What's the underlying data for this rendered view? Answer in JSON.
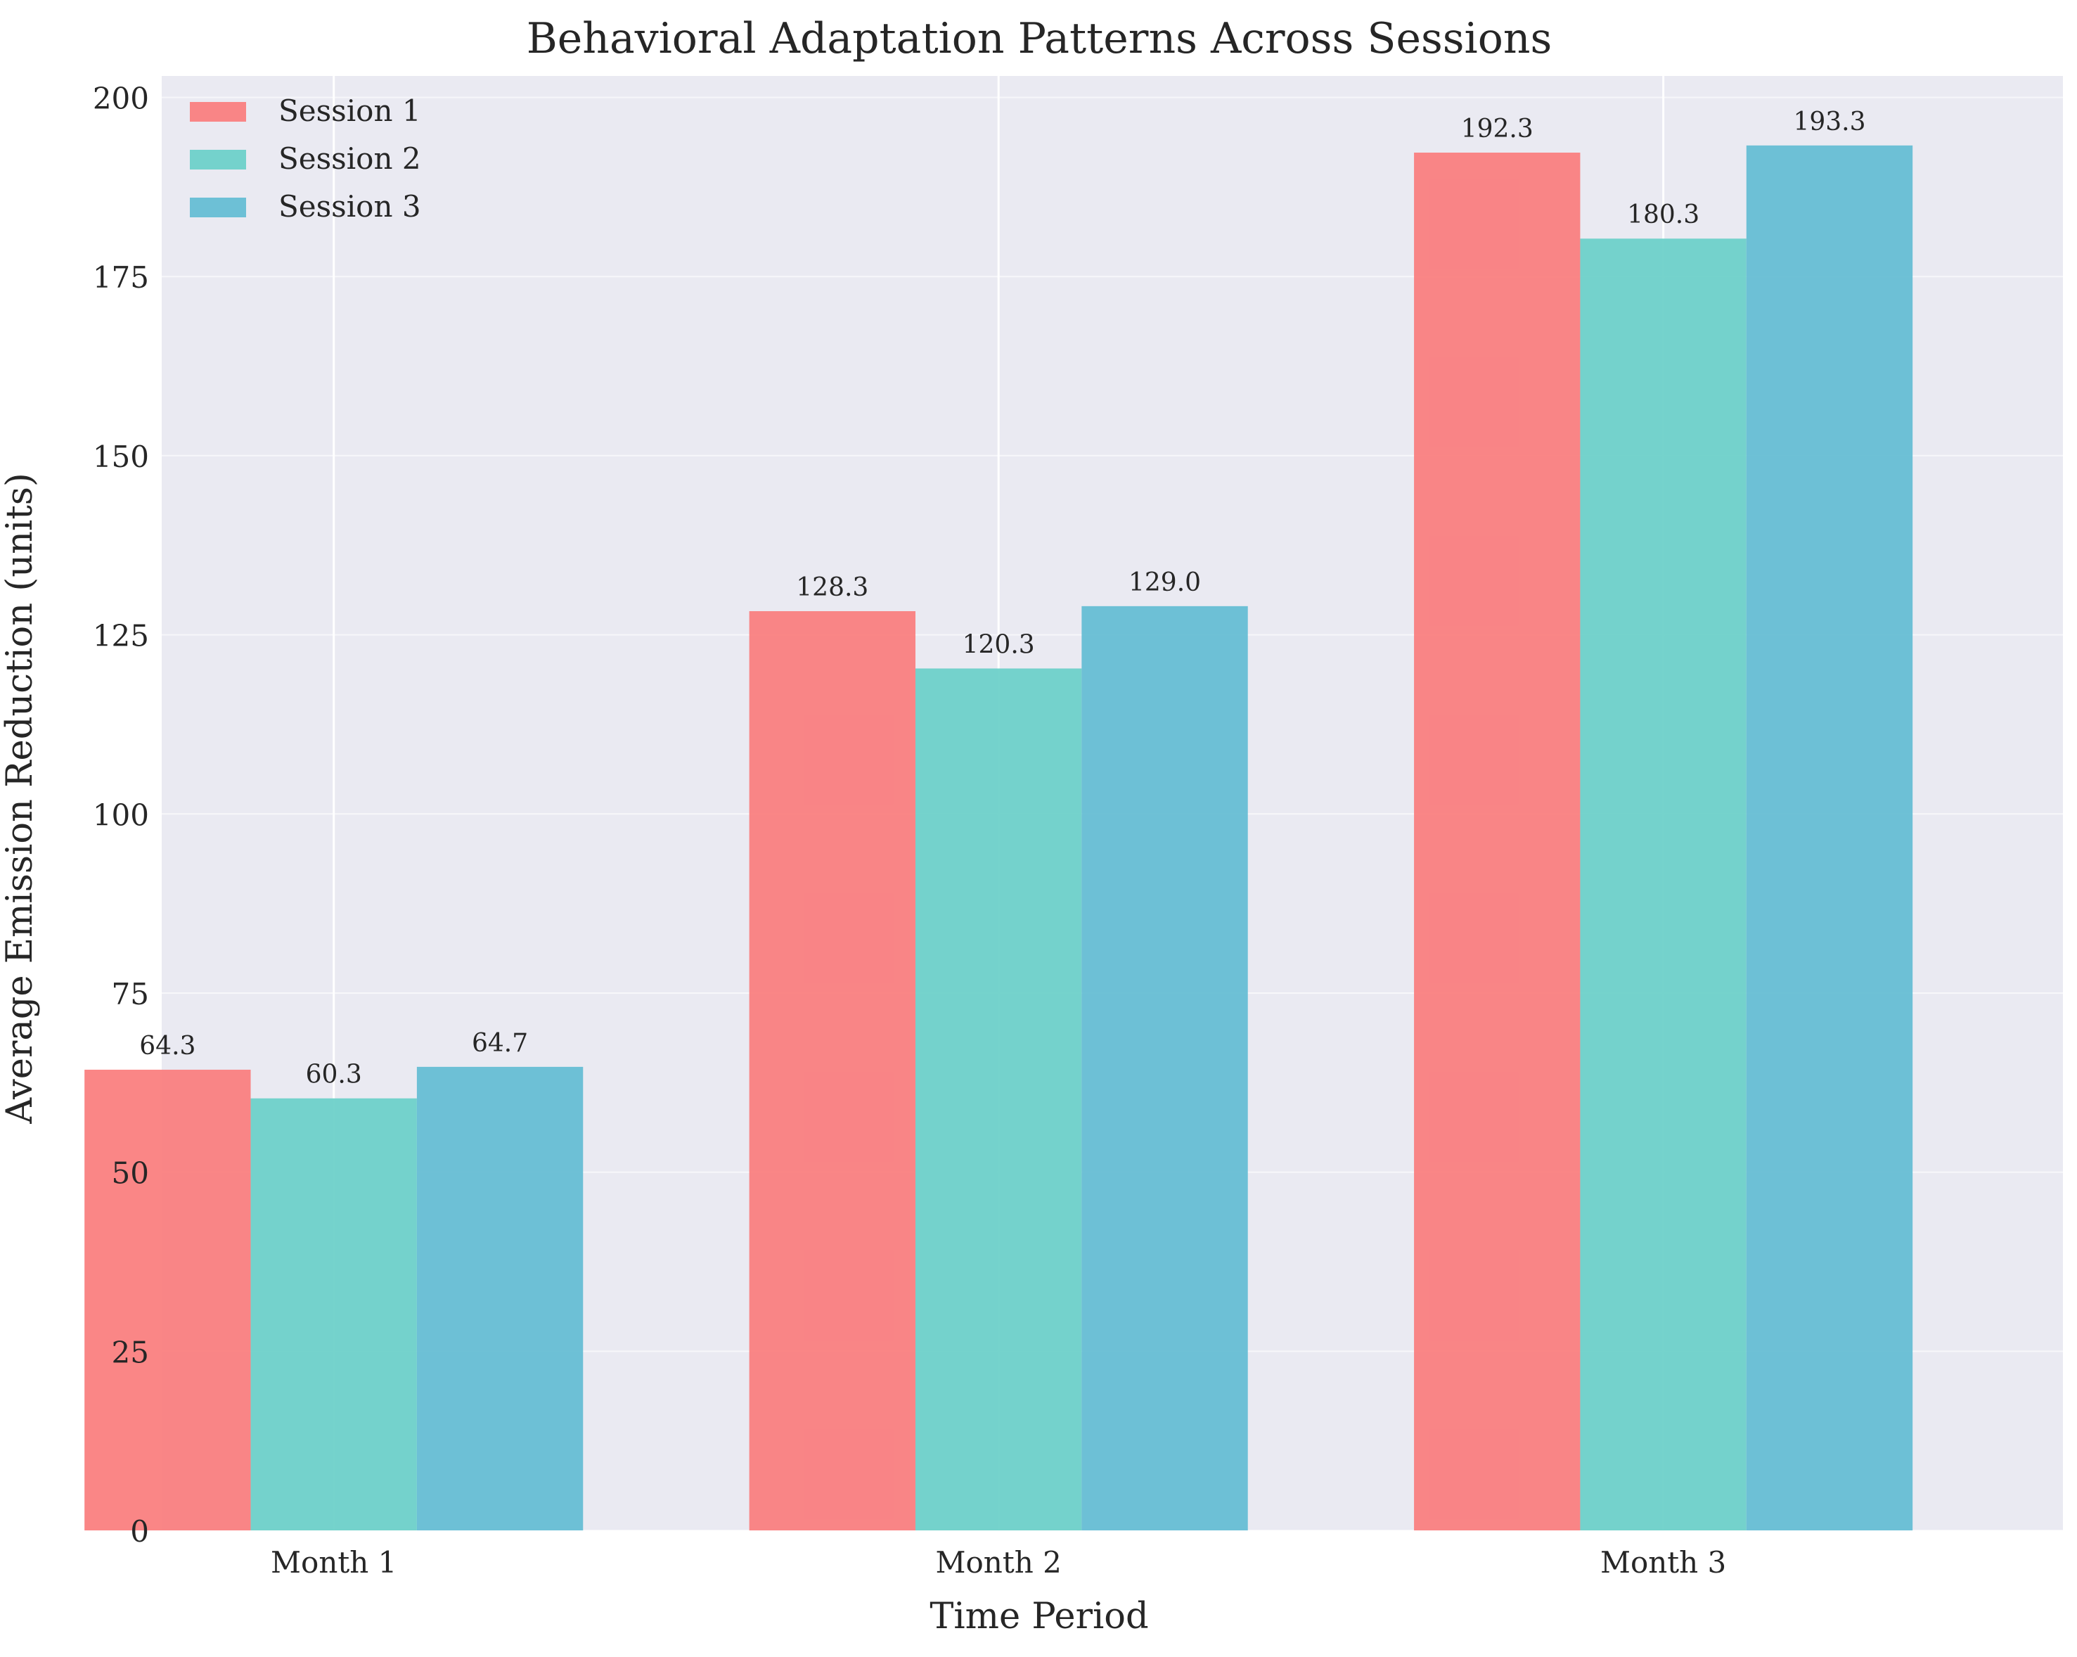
{
  "chart_data": {
    "type": "bar",
    "title": "Behavioral Adaptation Patterns Across Sessions",
    "xlabel": "Time Period",
    "ylabel": "Average Emission Reduction (units)",
    "categories": [
      "Month 1",
      "Month 2",
      "Month 3"
    ],
    "series": [
      {
        "name": "Session 1",
        "color": "#fa7f80",
        "values": [
          64.3,
          128.3,
          192.3
        ],
        "labels": [
          "64.3",
          "128.3",
          "192.3"
        ]
      },
      {
        "name": "Session 2",
        "color": "#6ed1c9",
        "values": [
          60.3,
          120.3,
          180.3
        ],
        "labels": [
          "60.3",
          "120.3",
          "180.3"
        ]
      },
      {
        "name": "Session 3",
        "color": "#66bed4",
        "values": [
          64.7,
          129.0,
          193.3
        ],
        "labels": [
          "64.7",
          "129.0",
          "193.3"
        ]
      }
    ],
    "ylim": [
      0,
      203
    ],
    "yticks": [
      0,
      25,
      50,
      75,
      100,
      125,
      150,
      175,
      200
    ],
    "grid": true,
    "legend_position": "upper left",
    "background_color": "#eaeaf2",
    "grid_color": "#ffffff"
  }
}
